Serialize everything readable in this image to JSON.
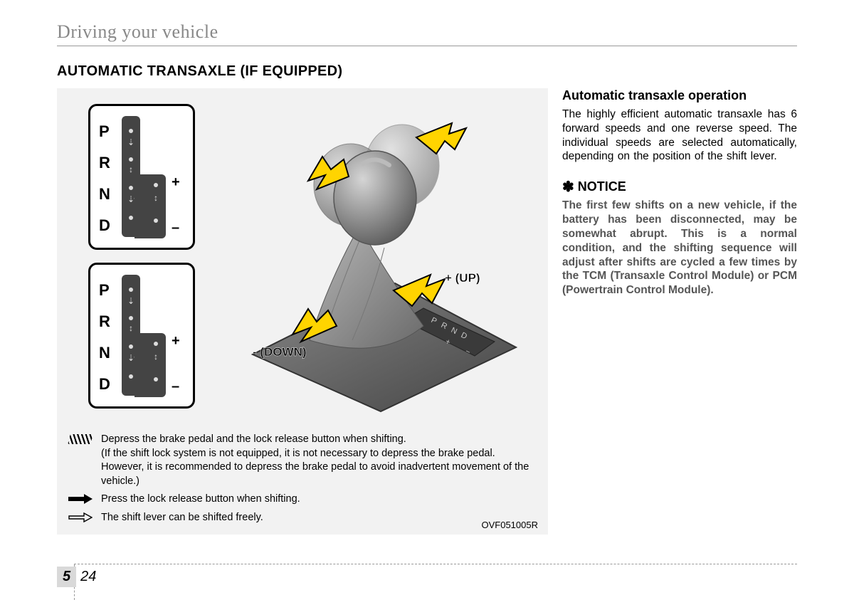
{
  "chapter_title": "Driving your vehicle",
  "section_title": "AUTOMATIC TRANSAXLE (IF EQUIPPED)",
  "figure": {
    "gears": [
      "P",
      "R",
      "N",
      "D"
    ],
    "plus": "+",
    "minus": "–",
    "up_label": "+ (UP)",
    "down_label": "- (DOWN)",
    "code": "OVF051005R",
    "legend": {
      "hatched": "Depress the brake pedal and the lock release button when shifting.\n(If the shift lock system is not equipped, it is not necessary to depress the brake pedal. However, it is recommended to depress the brake pedal to avoid inadvertent movement of the vehicle.)",
      "solid_arrow": "Press the lock release button when shifting.",
      "hollow_arrow": "The shift lever can be shifted freely."
    },
    "colors": {
      "bg": "#f2f2f2",
      "pattern_track": "#444444",
      "arrow_fill": "#ffd400",
      "arrow_stroke": "#000000",
      "shifter_dark": "#6a6a6a",
      "shifter_mid": "#9a9a9a",
      "shifter_light": "#c8c8c8",
      "panel": "#5f5f5f"
    }
  },
  "right": {
    "heading": "Automatic transaxle operation",
    "body": "The highly efficient automatic transaxle has 6 forward speeds and one reverse speed. The individual speeds are selected automatically, depending on the position of the shift lever.",
    "notice_label": "NOTICE",
    "notice_body": "The first few shifts on a new vehicle, if the battery has been disconnected, may be somewhat abrupt. This is a normal condition, and the shifting sequence will adjust after shifts are cycled a few times by the TCM (Transaxle Control Module) or PCM (Powertrain Control Module)."
  },
  "page": {
    "section_num": "5",
    "page_num": "24"
  }
}
